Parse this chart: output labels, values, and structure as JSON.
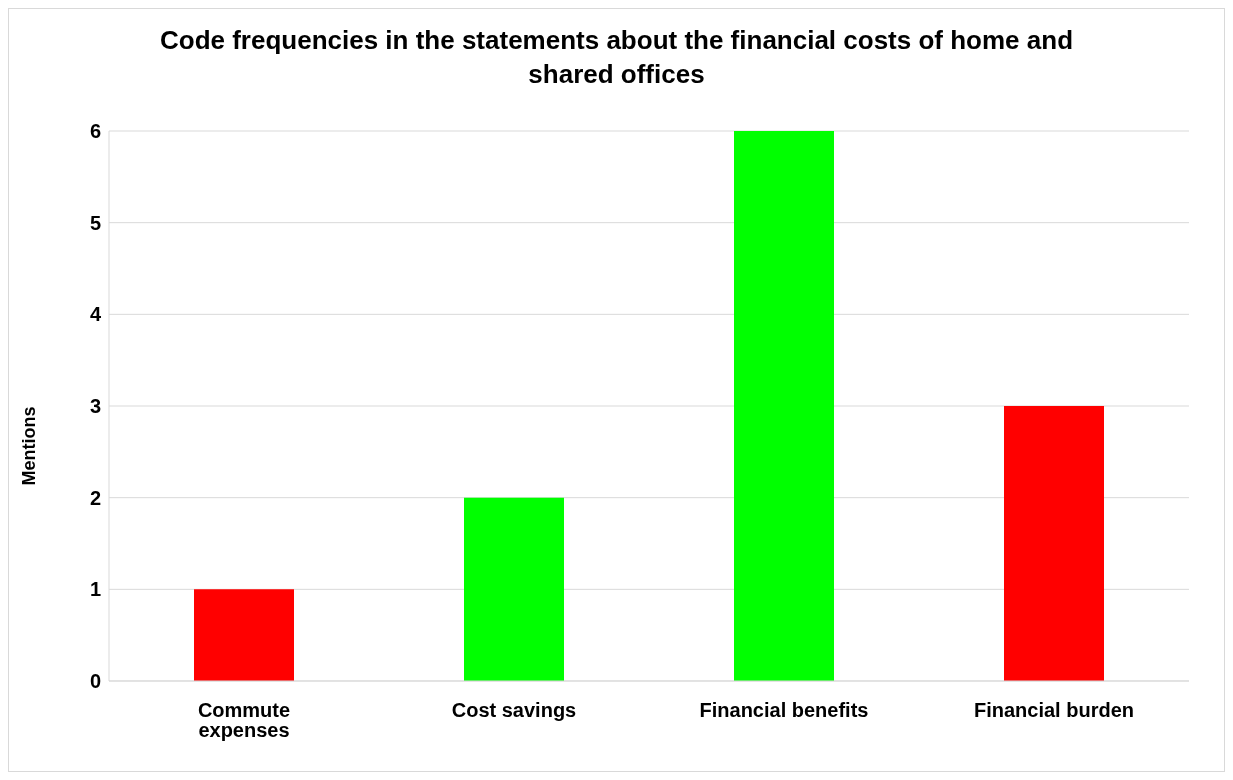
{
  "chart_data": {
    "type": "bar",
    "title": "Code frequencies in the statements about the financial costs of home and shared offices",
    "ylabel": "Mentions",
    "categories": [
      "Commute expenses",
      "Cost savings",
      "Financial benefits",
      "Financial burden"
    ],
    "values": [
      1,
      2,
      6,
      3
    ],
    "colors": [
      "#ff0000",
      "#00ff00",
      "#00ff00",
      "#ff0000"
    ],
    "ylim": [
      0,
      6
    ],
    "yticks": [
      0,
      1,
      2,
      3,
      4,
      5,
      6
    ],
    "grid": "y",
    "legend": false
  }
}
